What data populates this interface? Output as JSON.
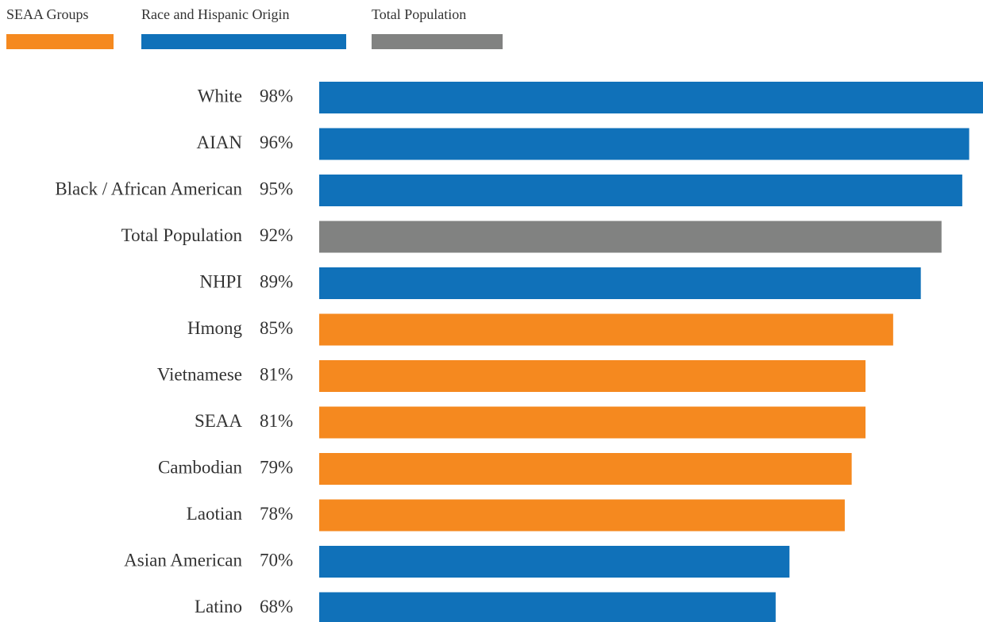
{
  "chart_data": {
    "type": "barh",
    "legend": [
      {
        "name": "SEAA Groups",
        "color": "#f5891f"
      },
      {
        "name": "Race and Hispanic Origin",
        "color": "#1071b9"
      },
      {
        "name": "Total Population",
        "color": "#818281"
      }
    ],
    "categories": [
      "White",
      "AIAN",
      "Black / African American",
      "Total Population",
      "NHPI",
      "Hmong",
      "Vietnamese",
      "SEAA",
      "Cambodian",
      "Laotian",
      "Asian American",
      "Latino"
    ],
    "values": [
      98,
      96,
      95,
      92,
      89,
      85,
      81,
      81,
      79,
      78,
      70,
      68
    ],
    "value_labels": [
      "98%",
      "96%",
      "95%",
      "92%",
      "89%",
      "85%",
      "81%",
      "81%",
      "79%",
      "78%",
      "70%",
      "68%"
    ],
    "colors": [
      "#1071b9",
      "#1071b9",
      "#1071b9",
      "#818281",
      "#1071b9",
      "#f5891f",
      "#f5891f",
      "#f5891f",
      "#f5891f",
      "#f5891f",
      "#1071b9",
      "#1071b9"
    ],
    "xlim": [
      0,
      98
    ]
  }
}
